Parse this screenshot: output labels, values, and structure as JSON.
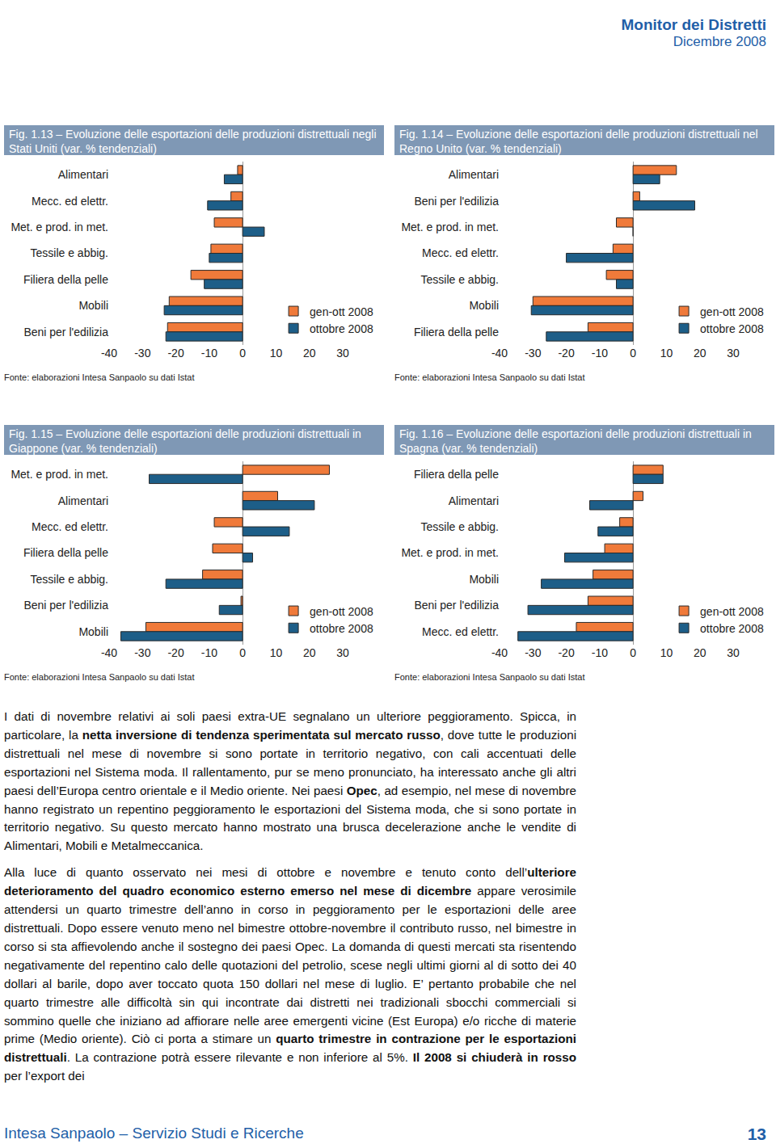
{
  "header": {
    "title": "Monitor dei Distretti",
    "date": "Dicembre 2008"
  },
  "chart_data": [
    {
      "type": "bar",
      "orientation": "horizontal",
      "title": "Fig. 1.13 – Evoluzione delle esportazioni delle produzioni distrettuali negli Stati Uniti (var. % tendenziali)",
      "categories": [
        "Alimentari",
        "Mecc. ed elettr.",
        "Met. e prod. in met.",
        "Tessile e abbig.",
        "Filiera della pelle",
        "Mobili",
        "Beni per l'edilizia"
      ],
      "series": [
        {
          "name": "gen-ott 2008",
          "color": "#f07a3a",
          "values": [
            -1.5,
            -3.5,
            -8.5,
            -9.5,
            -15.5,
            -22,
            -22.5
          ]
        },
        {
          "name": "ottobre 2008",
          "color": "#1d5e88",
          "values": [
            -5.5,
            -10.5,
            6.5,
            -10,
            -11.5,
            -23.5,
            -23
          ]
        }
      ],
      "xlim": [
        -40,
        30
      ],
      "xticks": [
        -40,
        -30,
        -20,
        -10,
        0,
        10,
        20,
        30
      ],
      "grid": false,
      "legend": "lower right",
      "source": "Fonte: elaborazioni Intesa Sanpaolo su dati Istat"
    },
    {
      "type": "bar",
      "orientation": "horizontal",
      "title": "Fig. 1.14 – Evoluzione delle esportazioni delle produzioni distrettuali nel Regno Unito (var. % tendenziali)",
      "categories": [
        "Alimentari",
        "Beni per l'edilizia",
        "Met. e prod. in met.",
        "Mecc. ed elettr.",
        "Tessile e abbig.",
        "Mobili",
        "Filiera della pelle"
      ],
      "series": [
        {
          "name": "gen-ott 2008",
          "color": "#f07a3a",
          "values": [
            13,
            2,
            -5,
            -6,
            -8,
            -30,
            -13.5
          ]
        },
        {
          "name": "ottobre 2008",
          "color": "#1d5e88",
          "values": [
            8,
            18.5,
            0,
            -20,
            -5,
            -30.5,
            -26
          ]
        }
      ],
      "xlim": [
        -40,
        30
      ],
      "xticks": [
        -40,
        -30,
        -20,
        -10,
        0,
        10,
        20,
        30
      ],
      "grid": false,
      "legend": "lower right",
      "source": "Fonte: elaborazioni Intesa Sanpaolo su dati Istat"
    },
    {
      "type": "bar",
      "orientation": "horizontal",
      "title": "Fig. 1.15 – Evoluzione delle esportazioni delle produzioni distrettuali in Giappone (var. % tendenziali)",
      "categories": [
        "Met. e prod. in met.",
        "Alimentari",
        "Mecc. ed elettr.",
        "Filiera della pelle",
        "Tessile e abbig.",
        "Beni per l'edilizia",
        "Mobili"
      ],
      "series": [
        {
          "name": "gen-ott 2008",
          "color": "#f07a3a",
          "values": [
            26,
            10.5,
            -8.5,
            -9,
            -12,
            -0.5,
            -29
          ]
        },
        {
          "name": "ottobre 2008",
          "color": "#1d5e88",
          "values": [
            -28,
            21.5,
            14,
            3,
            -23,
            -7,
            -36.5
          ]
        }
      ],
      "xlim": [
        -40,
        30
      ],
      "xticks": [
        -40,
        -30,
        -20,
        -10,
        0,
        10,
        20,
        30
      ],
      "grid": false,
      "legend": "lower right",
      "source": "Fonte: elaborazioni Intesa Sanpaolo su dati Istat"
    },
    {
      "type": "bar",
      "orientation": "horizontal",
      "title": "Fig. 1.16 – Evoluzione delle esportazioni delle produzioni distrettuali in Spagna (var. % tendenziali)",
      "categories": [
        "Filiera della pelle",
        "Alimentari",
        "Tessile e abbig.",
        "Met. e prod. in met.",
        "Mobili",
        "Beni per l'edilizia",
        "Mecc. ed elettr."
      ],
      "series": [
        {
          "name": "gen-ott 2008",
          "color": "#f07a3a",
          "values": [
            9,
            3,
            -4,
            -8.5,
            -12,
            -13.5,
            -17
          ]
        },
        {
          "name": "ottobre 2008",
          "color": "#1d5e88",
          "values": [
            9,
            -13,
            -10.5,
            -20.5,
            -27.5,
            -31.5,
            -34.5
          ]
        }
      ],
      "xlim": [
        -40,
        30
      ],
      "xticks": [
        -40,
        -30,
        -20,
        -10,
        0,
        10,
        20,
        30
      ],
      "grid": false,
      "legend": "lower right",
      "source": "Fonte: elaborazioni Intesa Sanpaolo su dati Istat"
    }
  ],
  "text": {
    "paragraphs": [
      [
        {
          "text": "I dati di novembre relativi ai soli paesi extra-UE segnalano un ulteriore peggioramento. Spicca, in particolare, la ",
          "bold": false
        },
        {
          "text": "netta inversione di tendenza sperimentata sul mercato russo",
          "bold": true
        },
        {
          "text": ", dove tutte le produzioni distrettuali nel mese di novembre si sono portate in territorio negativo, con cali accentuati delle esportazioni nel Sistema moda. Il rallentamento, pur se meno pronunciato, ha interessato anche gli altri paesi dell’Europa centro orientale e il Medio oriente. Nei paesi ",
          "bold": false
        },
        {
          "text": "Opec",
          "bold": true
        },
        {
          "text": ", ad esempio, nel mese di novembre hanno registrato un repentino peggioramento le esportazioni del Sistema moda, che si sono portate in territorio negativo. Su questo mercato hanno mostrato una brusca decelerazione anche le vendite di Alimentari, Mobili e Metalmeccanica.",
          "bold": false
        }
      ],
      [
        {
          "text": "Alla luce di quanto osservato nei mesi di ottobre e novembre e tenuto conto dell’",
          "bold": false
        },
        {
          "text": "ulteriore deterioramento del quadro economico esterno emerso nel mese di dicembre",
          "bold": true
        },
        {
          "text": " appare verosimile attendersi un quarto trimestre dell’anno in corso in peggioramento per le esportazioni delle aree distrettuali. Dopo essere venuto meno nel bimestre ottobre-novembre il contributo russo, nel bimestre in corso si sta affievolendo anche il sostegno dei paesi Opec. La domanda di questi mercati sta risentendo negativamente del repentino calo delle quotazioni del petrolio, scese negli ultimi giorni al di sotto dei 40 dollari al barile, dopo aver toccato quota 150 dollari nel mese di luglio. E’ pertanto probabile che nel quarto trimestre alle difficoltà sin qui incontrate dai distretti nei tradizionali sbocchi commerciali si sommino quelle che iniziano ad affiorare nelle aree emergenti vicine (Est Europa) e/o ricche di materie prime (Medio oriente). Ciò ci porta a stimare un ",
          "bold": false
        },
        {
          "text": "quarto trimestre in contrazione per le esportazioni distrettuali",
          "bold": true
        },
        {
          "text": ". La contrazione potrà essere rilevante e non inferiore al 5%. ",
          "bold": false
        },
        {
          "text": "Il 2008 si chiuderà in rosso",
          "bold": true
        },
        {
          "text": " per l’export dei",
          "bold": false
        }
      ]
    ]
  },
  "footer": {
    "left": "Intesa Sanpaolo – Servizio Studi e Ricerche",
    "page": "13"
  }
}
